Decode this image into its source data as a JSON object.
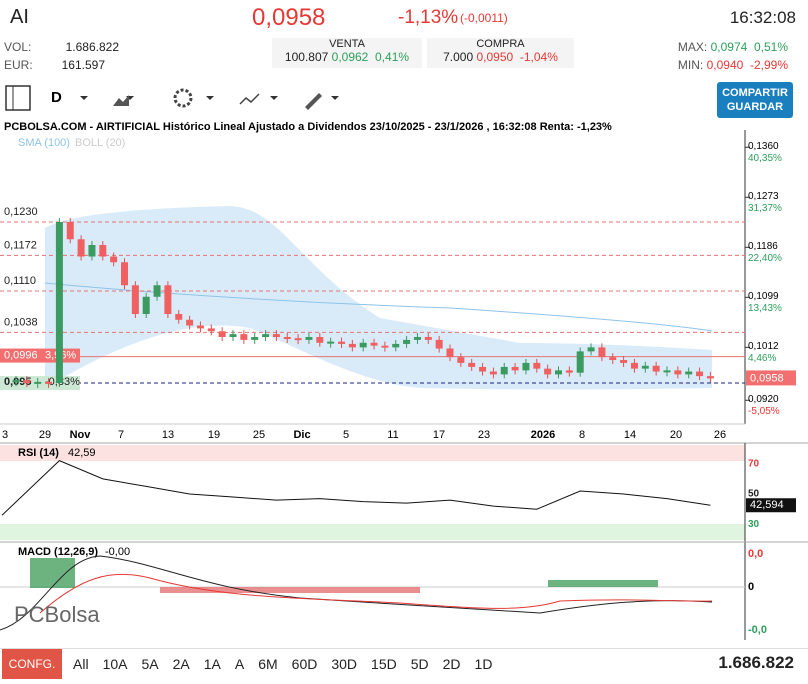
{
  "header": {
    "symbol": "AI",
    "price": "0,0958",
    "change_pct": "-1,13%",
    "change_abs": "(-0,0011)",
    "time": "16:32:08"
  },
  "stats": {
    "vol_label": "VOL:",
    "vol": "1.686.822",
    "eur_label": "EUR:",
    "eur": "161.597"
  },
  "venta": {
    "label": "VENTA",
    "volume": "100.807",
    "price": "0,0962",
    "pct": "0,41%"
  },
  "compra": {
    "label": "COMPRA",
    "volume": "7.000",
    "price": "0,0950",
    "pct": "-1,04%"
  },
  "range": {
    "max_label": "MAX:",
    "max": "0,0974",
    "max_pct": "0,51%",
    "min_label": "MIN:",
    "min": "0,0940",
    "min_pct": "-2,99%"
  },
  "toolbar": {
    "period": "D",
    "button": [
      "COMPARTIR",
      "GUARDAR"
    ]
  },
  "chart": {
    "title": "PCBOLSA.COM - AIRTIFICIAL Histórico Lineal Ajustado a Dividendos 23/10/2025 - 23/1/2026 , 16:32:08 Renta: -1,23%",
    "indicators": [
      "SMA (100)",
      "BOLL (20)"
    ],
    "ylim": [
      0.0877,
      0.139
    ],
    "yticks": [
      {
        "value": 0.136,
        "label": "0,1360",
        "pct": "40,35%"
      },
      {
        "value": 0.1273,
        "label": "0,1273",
        "pct": "31,37%"
      },
      {
        "value": 0.1186,
        "label": "0,1186",
        "pct": "22,40%"
      },
      {
        "value": 0.1099,
        "label": "0,1099",
        "pct": "13,43%"
      },
      {
        "value": 0.1012,
        "label": "0,1012",
        "pct": "4,46%"
      },
      {
        "value": 0.092,
        "label": "0,0920",
        "pct": "-5,05%"
      }
    ],
    "last": {
      "value": 0.0958,
      "label": "0,0958"
    },
    "levels": [
      {
        "value": 0.123,
        "label": "0,1230"
      },
      {
        "value": 0.1172,
        "label": "0,1172"
      },
      {
        "value": 0.111,
        "label": "0,1110"
      },
      {
        "value": 0.1038,
        "label": "0,1038"
      },
      {
        "value": 0.0996,
        "label": "0,0996",
        "pct": "3,96%"
      },
      {
        "value": 0.095,
        "label": "0,095",
        "pct": "-0,83%"
      }
    ],
    "xlabels": [
      "3",
      "29",
      "Nov",
      "7",
      "13",
      "19",
      "25",
      "Dic",
      "5",
      "11",
      "17",
      "23",
      "2026",
      "8",
      "14",
      "20",
      "26"
    ],
    "close": [
      0.0955,
      0.095,
      0.0952,
      0.095,
      0.123,
      0.12,
      0.117,
      0.119,
      0.117,
      0.116,
      0.112,
      0.107,
      0.11,
      0.112,
      0.107,
      0.106,
      0.105,
      0.1045,
      0.104,
      0.103,
      0.1035,
      0.1025,
      0.103,
      0.1035,
      0.103,
      0.1028,
      0.1025,
      0.103,
      0.102,
      0.1022,
      0.1018,
      0.1012,
      0.102,
      0.1015,
      0.1012,
      0.1018,
      0.1025,
      0.103,
      0.1025,
      0.101,
      0.0995,
      0.0985,
      0.0978,
      0.097,
      0.0965,
      0.0978,
      0.0972,
      0.0985,
      0.0975,
      0.0965,
      0.0972,
      0.0968,
      0.1005,
      0.1012,
      0.0995,
      0.099,
      0.0985,
      0.0975,
      0.098,
      0.097,
      0.0972,
      0.0965,
      0.097,
      0.0962,
      0.0958
    ]
  },
  "rsi": {
    "label": "RSI (14)",
    "value": "42,59",
    "ylim": [
      19.7,
      82.3
    ],
    "yticks": [
      70,
      50,
      30
    ],
    "last": {
      "value": 42.594,
      "label": "42,594"
    },
    "values": [
      36,
      72,
      60,
      55,
      50,
      48,
      46,
      47,
      45,
      44,
      46,
      42,
      40,
      52,
      50,
      47,
      42.59
    ]
  },
  "macd": {
    "label": "MACD (12,26,9)",
    "value": "-0,00",
    "ticks": [
      "0,0",
      "0",
      "-0,0"
    ]
  },
  "footer": {
    "config": "CONFG.",
    "ranges": [
      "All",
      "10A",
      "5A",
      "2A",
      "1A",
      "A",
      "6M",
      "60D",
      "30D",
      "15D",
      "5D",
      "2D",
      "1D"
    ],
    "volume": "1.686.822"
  }
}
